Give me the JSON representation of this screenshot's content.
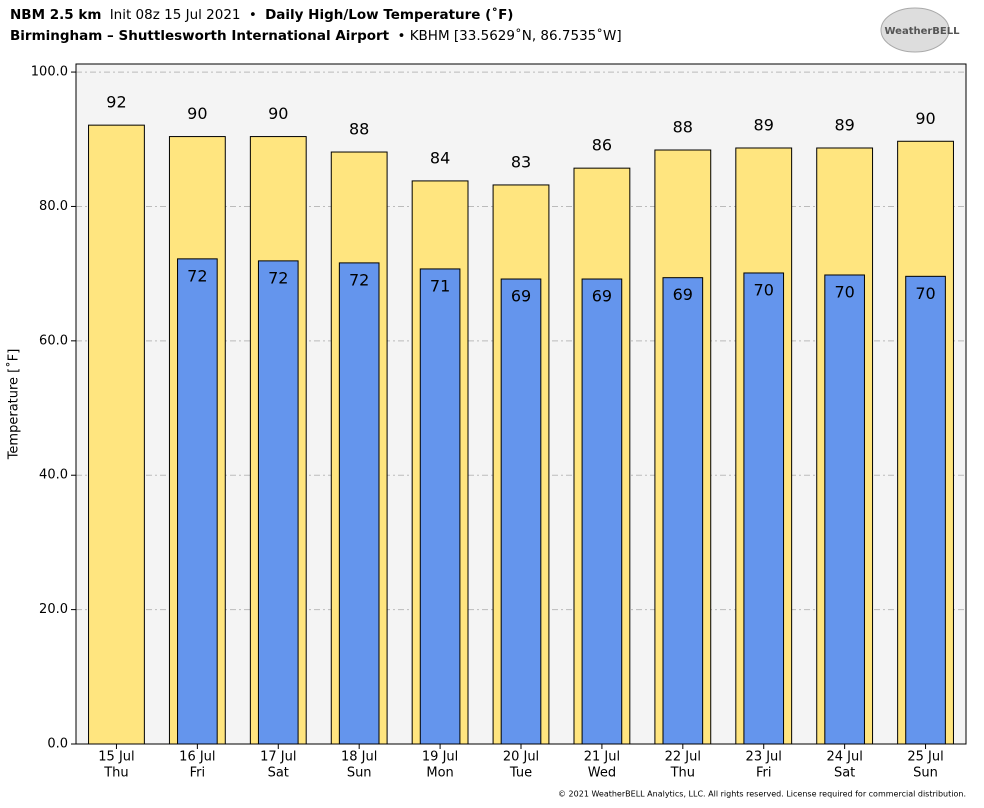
{
  "chart_data": {
    "type": "bar",
    "title": {
      "model": "NBM 2.5 km",
      "init": "Init 08z 15 Jul 2021",
      "sep": "•",
      "name": "Daily High/Low Temperature (˚F)"
    },
    "subtitle": {
      "station": "Birmingham – Shuttlesworth International Airport",
      "info": "• KBHM [33.5629˚N, 86.7535˚W]"
    },
    "logo": "WeatherBELL",
    "footer": "© 2021 WeatherBELL Analytics, LLC. All rights reserved. License required for commercial distribution.",
    "y_label": "Temperature [˚F]",
    "categories": [
      [
        "15 Jul",
        "Thu"
      ],
      [
        "16 Jul",
        "Fri"
      ],
      [
        "17 Jul",
        "Sat"
      ],
      [
        "18 Jul",
        "Sun"
      ],
      [
        "19 Jul",
        "Mon"
      ],
      [
        "20 Jul",
        "Tue"
      ],
      [
        "21 Jul",
        "Wed"
      ],
      [
        "22 Jul",
        "Thu"
      ],
      [
        "23 Jul",
        "Fri"
      ],
      [
        "24 Jul",
        "Sat"
      ],
      [
        "25 Jul",
        "Sun"
      ]
    ],
    "series": [
      {
        "name": "High",
        "color": "#ffe57f",
        "values": [
          92.1,
          90.4,
          90.4,
          88.1,
          83.8,
          83.2,
          85.7,
          88.4,
          88.7,
          88.7,
          89.7
        ],
        "value_labels": [
          "92",
          "90",
          "90",
          "88",
          "84",
          "83",
          "86",
          "88",
          "89",
          "89",
          "90"
        ]
      },
      {
        "name": "Low",
        "color": "#6495ed",
        "values": [
          null,
          72.2,
          71.9,
          71.6,
          70.7,
          69.2,
          69.2,
          69.4,
          70.1,
          69.8,
          69.6
        ],
        "value_labels": [
          null,
          "72",
          "72",
          "72",
          "71",
          "69",
          "69",
          "69",
          "70",
          "70",
          "70"
        ]
      }
    ],
    "ylim": [
      0,
      101.2
    ],
    "yticks": [
      {
        "value": 0,
        "label": "0.0"
      },
      {
        "value": 20,
        "label": "20.0"
      },
      {
        "value": 40,
        "label": "40.0"
      },
      {
        "value": 60,
        "label": "60.0"
      },
      {
        "value": 80,
        "label": "80.0"
      },
      {
        "value": 100,
        "label": "100.0"
      }
    ],
    "grid": true
  }
}
